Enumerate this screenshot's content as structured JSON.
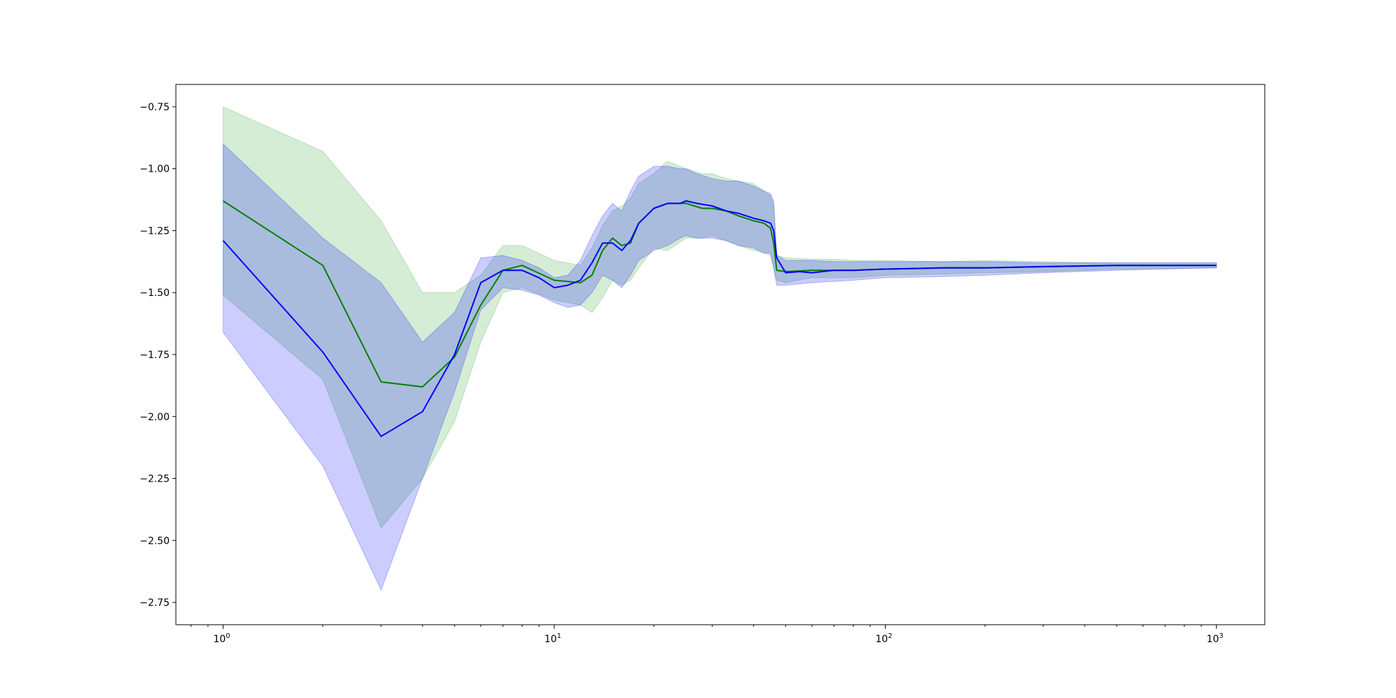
{
  "chart_data": {
    "type": "line",
    "title": "",
    "xlabel": "",
    "ylabel": "",
    "x_scale": "log",
    "xlim": [
      0.72,
      1400
    ],
    "ylim": [
      -2.84,
      -0.66
    ],
    "grid": false,
    "legend": "none",
    "x_ticks": [
      {
        "value": 1,
        "base": "10",
        "exp": "0"
      },
      {
        "value": 10,
        "base": "10",
        "exp": "1"
      },
      {
        "value": 100,
        "base": "10",
        "exp": "2"
      },
      {
        "value": 1000,
        "base": "10",
        "exp": "3"
      }
    ],
    "y_ticks": [
      {
        "value": -0.75,
        "label": "−0.75"
      },
      {
        "value": -1.0,
        "label": "−1.00"
      },
      {
        "value": -1.25,
        "label": "−1.25"
      },
      {
        "value": -1.5,
        "label": "−1.50"
      },
      {
        "value": -1.75,
        "label": "−1.75"
      },
      {
        "value": -2.0,
        "label": "−2.00"
      },
      {
        "value": -2.25,
        "label": "−2.25"
      },
      {
        "value": -2.5,
        "label": "−2.50"
      },
      {
        "value": -2.75,
        "label": "−2.75"
      }
    ],
    "series": [
      {
        "color": "#008000",
        "band_color": "#2ca02c",
        "x": [
          1,
          2,
          3,
          4,
          5,
          6,
          7,
          8,
          10,
          12,
          13,
          14,
          15,
          16,
          17,
          18,
          20,
          22,
          25,
          28,
          30,
          33,
          36,
          40,
          43,
          45,
          46,
          47,
          50,
          60,
          70,
          80,
          100,
          150,
          200,
          300,
          500,
          1000
        ],
        "mean": [
          -1.13,
          -1.39,
          -1.86,
          -1.88,
          -1.76,
          -1.55,
          -1.41,
          -1.39,
          -1.45,
          -1.46,
          -1.43,
          -1.33,
          -1.28,
          -1.31,
          -1.3,
          -1.22,
          -1.16,
          -1.14,
          -1.14,
          -1.16,
          -1.16,
          -1.17,
          -1.19,
          -1.21,
          -1.22,
          -1.24,
          -1.3,
          -1.41,
          -1.415,
          -1.41,
          -1.41,
          -1.41,
          -1.405,
          -1.4,
          -1.4,
          -1.395,
          -1.39,
          -1.39
        ],
        "upper": [
          -0.75,
          -0.93,
          -1.21,
          -1.5,
          -1.5,
          -1.43,
          -1.31,
          -1.31,
          -1.37,
          -1.39,
          -1.32,
          -1.23,
          -1.17,
          -1.15,
          -1.12,
          -1.06,
          -1.02,
          -0.97,
          -1.0,
          -1.02,
          -1.02,
          -1.04,
          -1.05,
          -1.06,
          -1.09,
          -1.11,
          -1.15,
          -1.35,
          -1.36,
          -1.365,
          -1.365,
          -1.37,
          -1.37,
          -1.375,
          -1.37,
          -1.375,
          -1.38,
          -1.38
        ],
        "lower": [
          -1.51,
          -1.85,
          -2.45,
          -2.25,
          -2.02,
          -1.7,
          -1.5,
          -1.48,
          -1.53,
          -1.55,
          -1.58,
          -1.52,
          -1.45,
          -1.47,
          -1.45,
          -1.4,
          -1.32,
          -1.33,
          -1.28,
          -1.28,
          -1.27,
          -1.29,
          -1.31,
          -1.33,
          -1.34,
          -1.35,
          -1.4,
          -1.45,
          -1.46,
          -1.44,
          -1.44,
          -1.44,
          -1.43,
          -1.425,
          -1.42,
          -1.415,
          -1.405,
          -1.4
        ]
      },
      {
        "color": "#0000ff",
        "band_color": "#0000ff",
        "x": [
          1,
          2,
          3,
          4,
          5,
          6,
          7,
          8,
          9,
          10,
          11,
          12,
          13,
          14,
          15,
          16,
          17,
          18,
          20,
          22,
          24,
          25,
          27,
          30,
          33,
          36,
          40,
          43,
          45,
          46,
          47,
          50,
          55,
          60,
          70,
          80,
          100,
          150,
          200,
          300,
          500,
          1000
        ],
        "mean": [
          -1.29,
          -1.74,
          -2.08,
          -1.98,
          -1.75,
          -1.46,
          -1.41,
          -1.41,
          -1.44,
          -1.48,
          -1.47,
          -1.45,
          -1.38,
          -1.3,
          -1.3,
          -1.33,
          -1.29,
          -1.22,
          -1.16,
          -1.14,
          -1.14,
          -1.13,
          -1.14,
          -1.15,
          -1.17,
          -1.18,
          -1.2,
          -1.21,
          -1.22,
          -1.25,
          -1.36,
          -1.42,
          -1.415,
          -1.42,
          -1.41,
          -1.41,
          -1.405,
          -1.4,
          -1.4,
          -1.395,
          -1.39,
          -1.39
        ],
        "upper": [
          -0.9,
          -1.28,
          -1.46,
          -1.7,
          -1.58,
          -1.36,
          -1.35,
          -1.37,
          -1.4,
          -1.44,
          -1.43,
          -1.37,
          -1.27,
          -1.19,
          -1.14,
          -1.17,
          -1.09,
          -1.03,
          -0.99,
          -0.99,
          -1.0,
          -1.0,
          -1.02,
          -1.04,
          -1.05,
          -1.05,
          -1.07,
          -1.09,
          -1.1,
          -1.13,
          -1.35,
          -1.37,
          -1.37,
          -1.37,
          -1.375,
          -1.375,
          -1.375,
          -1.375,
          -1.375,
          -1.38,
          -1.38,
          -1.38
        ],
        "lower": [
          -1.66,
          -2.2,
          -2.7,
          -2.25,
          -1.9,
          -1.57,
          -1.48,
          -1.49,
          -1.51,
          -1.54,
          -1.56,
          -1.55,
          -1.5,
          -1.43,
          -1.45,
          -1.48,
          -1.43,
          -1.37,
          -1.33,
          -1.31,
          -1.28,
          -1.27,
          -1.28,
          -1.28,
          -1.29,
          -1.31,
          -1.32,
          -1.34,
          -1.34,
          -1.4,
          -1.47,
          -1.47,
          -1.465,
          -1.46,
          -1.455,
          -1.45,
          -1.44,
          -1.435,
          -1.43,
          -1.42,
          -1.41,
          -1.4
        ]
      }
    ]
  }
}
